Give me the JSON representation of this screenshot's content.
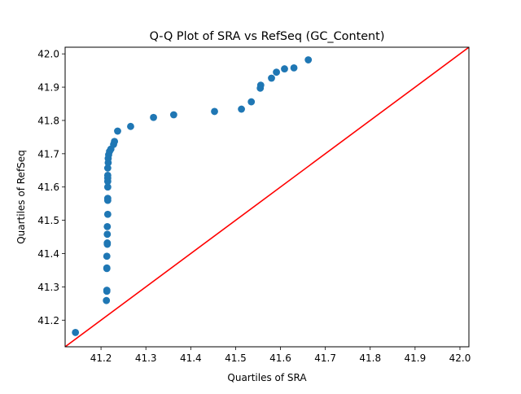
{
  "chart_data": {
    "type": "scatter",
    "title": "Q-Q Plot of SRA vs RefSeq (GC_Content)",
    "xlabel": "Quartiles of SRA",
    "ylabel": "Quartiles of RefSeq",
    "xlim": [
      41.12,
      42.02
    ],
    "ylim": [
      41.12,
      42.02
    ],
    "xticks": [
      41.2,
      41.3,
      41.4,
      41.5,
      41.6,
      41.7,
      41.8,
      41.9,
      42.0
    ],
    "yticks": [
      41.2,
      41.3,
      41.4,
      41.5,
      41.6,
      41.7,
      41.8,
      41.9,
      42.0
    ],
    "xtick_labels": [
      "41.2",
      "41.3",
      "41.4",
      "41.5",
      "41.6",
      "41.7",
      "41.8",
      "41.9",
      "42.0"
    ],
    "ytick_labels": [
      "41.2",
      "41.3",
      "41.4",
      "41.5",
      "41.6",
      "41.7",
      "41.8",
      "41.9",
      "42.0"
    ],
    "grid": false,
    "marker_color": "#1f77b4",
    "reference_line_color": "#ff0000",
    "reference_line": {
      "from": [
        41.12,
        41.12
      ],
      "to": [
        42.02,
        42.02
      ]
    },
    "points": [
      {
        "x": 41.143,
        "y": 41.163
      },
      {
        "x": 41.212,
        "y": 41.259
      },
      {
        "x": 41.213,
        "y": 41.287
      },
      {
        "x": 41.213,
        "y": 41.29
      },
      {
        "x": 41.213,
        "y": 41.355
      },
      {
        "x": 41.213,
        "y": 41.357
      },
      {
        "x": 41.213,
        "y": 41.392
      },
      {
        "x": 41.214,
        "y": 41.428
      },
      {
        "x": 41.214,
        "y": 41.432
      },
      {
        "x": 41.214,
        "y": 41.458
      },
      {
        "x": 41.214,
        "y": 41.481
      },
      {
        "x": 41.215,
        "y": 41.518
      },
      {
        "x": 41.215,
        "y": 41.56
      },
      {
        "x": 41.215,
        "y": 41.566
      },
      {
        "x": 41.215,
        "y": 41.6
      },
      {
        "x": 41.215,
        "y": 41.617
      },
      {
        "x": 41.215,
        "y": 41.627
      },
      {
        "x": 41.215,
        "y": 41.635
      },
      {
        "x": 41.215,
        "y": 41.657
      },
      {
        "x": 41.216,
        "y": 41.673
      },
      {
        "x": 41.216,
        "y": 41.686
      },
      {
        "x": 41.217,
        "y": 41.697
      },
      {
        "x": 41.219,
        "y": 41.707
      },
      {
        "x": 41.222,
        "y": 41.714
      },
      {
        "x": 41.228,
        "y": 41.728
      },
      {
        "x": 41.23,
        "y": 41.737
      },
      {
        "x": 41.237,
        "y": 41.768
      },
      {
        "x": 41.266,
        "y": 41.782
      },
      {
        "x": 41.317,
        "y": 41.809
      },
      {
        "x": 41.362,
        "y": 41.817
      },
      {
        "x": 41.453,
        "y": 41.827
      },
      {
        "x": 41.513,
        "y": 41.834
      },
      {
        "x": 41.535,
        "y": 41.856
      },
      {
        "x": 41.555,
        "y": 41.897
      },
      {
        "x": 41.556,
        "y": 41.906
      },
      {
        "x": 41.58,
        "y": 41.927
      },
      {
        "x": 41.591,
        "y": 41.945
      },
      {
        "x": 41.609,
        "y": 41.955
      },
      {
        "x": 41.63,
        "y": 41.958
      },
      {
        "x": 41.662,
        "y": 41.982
      }
    ]
  }
}
